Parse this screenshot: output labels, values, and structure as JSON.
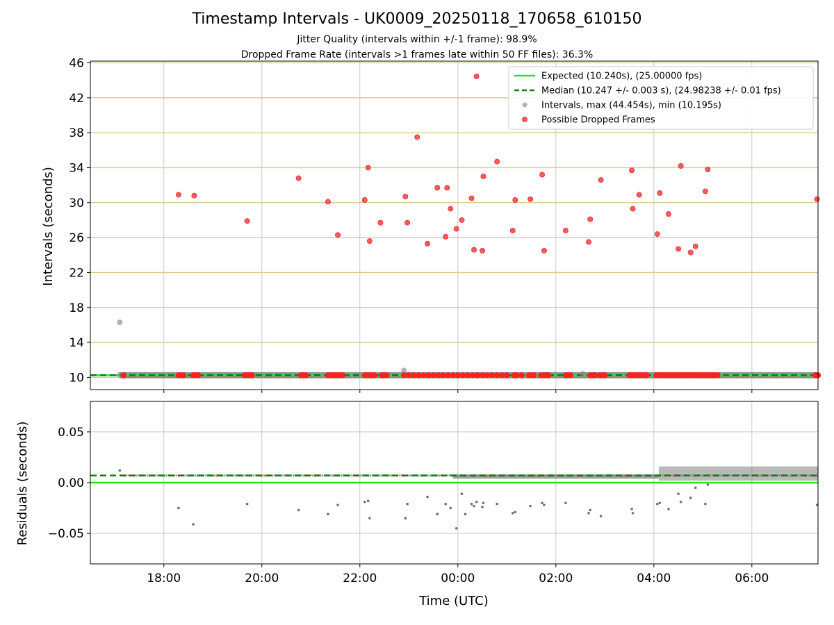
{
  "title": "Timestamp Intervals - UK0009_20250118_170658_610150",
  "subtitle_jitter": "Jitter Quality (intervals within +/-1 frame): 98.9%",
  "subtitle_dropped": "Dropped Frame Rate (intervals >1 frames late within 50 FF files): 36.3%",
  "colors": {
    "expected": "#22e622",
    "median": "#0a7d0a",
    "intervals": "#808080",
    "dropped": "#ff2020",
    "hgrid_top": "#d9c58c",
    "grid": "#c8c8c8"
  },
  "chart_data": [
    {
      "type": "scatter",
      "ylabel": "Intervals (seconds)",
      "ylim": [
        8.6,
        46.2
      ],
      "yticks": [
        10,
        14,
        18,
        22,
        26,
        30,
        34,
        38,
        42,
        46
      ],
      "xlim_hours": [
        16.5,
        31.35
      ],
      "grid": true,
      "legend_position": "top-right",
      "legend": [
        "Expected (10.240s), (25.00000 fps)",
        "Median (10.247 +/- 0.003 s), (24.98238 +/- 0.01 fps)",
        "Intervals, max (44.454s), min (10.195s)",
        "Possible Dropped Frames"
      ],
      "expected_value": 10.24,
      "median_value": 10.247,
      "intervals_baseline": 10.24,
      "intervals_outliers": [
        [
          17.1,
          16.3
        ],
        [
          22.9,
          10.8
        ],
        [
          26.55,
          10.4
        ],
        [
          17.1,
          10.3
        ]
      ],
      "dropped_frames": [
        [
          18.3,
          30.9
        ],
        [
          18.62,
          30.8
        ],
        [
          19.7,
          27.9
        ],
        [
          20.75,
          32.8
        ],
        [
          21.35,
          30.1
        ],
        [
          21.55,
          26.3
        ],
        [
          22.1,
          30.3
        ],
        [
          22.17,
          34.0
        ],
        [
          22.2,
          25.6
        ],
        [
          22.42,
          27.7
        ],
        [
          22.93,
          30.7
        ],
        [
          22.97,
          27.7
        ],
        [
          23.17,
          37.5
        ],
        [
          23.38,
          25.3
        ],
        [
          23.58,
          31.7
        ],
        [
          23.75,
          26.1
        ],
        [
          23.78,
          31.7
        ],
        [
          23.85,
          29.3
        ],
        [
          23.97,
          27.0
        ],
        [
          24.08,
          28.0
        ],
        [
          24.28,
          30.5
        ],
        [
          24.33,
          24.6
        ],
        [
          24.38,
          44.454
        ],
        [
          24.5,
          24.5
        ],
        [
          24.52,
          33.0
        ],
        [
          24.8,
          34.7
        ],
        [
          25.12,
          26.8
        ],
        [
          25.17,
          30.3
        ],
        [
          25.48,
          30.4
        ],
        [
          25.72,
          33.2
        ],
        [
          25.76,
          24.5
        ],
        [
          26.2,
          26.8
        ],
        [
          26.67,
          25.5
        ],
        [
          26.7,
          28.1
        ],
        [
          26.92,
          32.6
        ],
        [
          27.55,
          33.7
        ],
        [
          27.57,
          29.3
        ],
        [
          27.7,
          30.9
        ],
        [
          28.07,
          26.4
        ],
        [
          28.12,
          31.1
        ],
        [
          28.3,
          28.7
        ],
        [
          28.5,
          24.7
        ],
        [
          28.55,
          34.2
        ],
        [
          28.75,
          24.3
        ],
        [
          28.85,
          25.0
        ],
        [
          29.05,
          31.3
        ],
        [
          29.1,
          33.8
        ],
        [
          31.33,
          30.4
        ]
      ],
      "dropped_baseline_x": [
        17.18,
        18.3,
        18.35,
        18.4,
        18.6,
        18.65,
        18.7,
        19.65,
        19.7,
        19.75,
        19.8,
        20.8,
        20.85,
        20.9,
        21.35,
        21.4,
        21.45,
        21.5,
        21.55,
        21.6,
        21.65,
        22.1,
        22.15,
        22.2,
        22.25,
        22.3,
        22.45,
        22.5,
        22.55,
        22.9,
        23.0,
        23.1,
        23.2,
        23.3,
        23.4,
        23.5,
        23.6,
        23.7,
        23.8,
        23.9,
        24.0,
        24.1,
        24.2,
        24.3,
        24.4,
        24.5,
        24.6,
        24.7,
        24.8,
        24.9,
        25.0,
        25.15,
        25.2,
        25.3,
        25.45,
        25.5,
        25.55,
        25.7,
        25.75,
        25.8,
        25.85,
        26.2,
        26.25,
        26.3,
        26.7,
        26.75,
        26.8,
        26.9,
        26.95,
        27.0,
        27.5,
        27.55,
        27.6,
        27.65,
        27.7,
        27.75,
        27.8,
        27.85,
        28.05,
        28.1,
        28.15,
        28.2,
        28.25,
        28.3,
        28.35,
        28.4,
        28.45,
        28.5,
        28.55,
        28.6,
        28.65,
        28.7,
        28.75,
        28.8,
        28.85,
        28.9,
        28.95,
        29.0,
        29.05,
        29.1,
        29.15,
        29.2,
        29.25,
        29.3,
        31.3,
        31.35
      ]
    },
    {
      "type": "scatter",
      "xlabel": "Time (UTC)",
      "ylabel": "Residuals (seconds)",
      "ylim": [
        -0.08,
        0.08
      ],
      "yticks": [
        0.05,
        0.0,
        -0.05
      ],
      "ytick_labels": [
        "0.05",
        "0.00",
        "−0.05"
      ],
      "xlim_hours": [
        16.5,
        31.35
      ],
      "xticks_hours": [
        18,
        20,
        22,
        24,
        26,
        28,
        30
      ],
      "xtick_labels": [
        "18:00",
        "20:00",
        "22:00",
        "00:00",
        "02:00",
        "04:00",
        "06:00"
      ],
      "grid": true,
      "expected_residual": 0.0,
      "median_residual": 0.007,
      "baseline_residual": 0.007,
      "dense_band_start_hours": 28.1,
      "dense_band_range": [
        0.002,
        0.016
      ],
      "residual_outliers": [
        [
          17.1,
          0.012
        ],
        [
          18.3,
          -0.025
        ],
        [
          18.6,
          -0.041
        ],
        [
          19.7,
          -0.021
        ],
        [
          20.75,
          -0.027
        ],
        [
          21.35,
          -0.031
        ],
        [
          21.55,
          -0.022
        ],
        [
          22.1,
          -0.019
        ],
        [
          22.17,
          -0.018
        ],
        [
          22.2,
          -0.035
        ],
        [
          22.93,
          -0.035
        ],
        [
          22.97,
          -0.021
        ],
        [
          23.38,
          -0.014
        ],
        [
          23.58,
          -0.031
        ],
        [
          23.75,
          -0.021
        ],
        [
          23.85,
          -0.025
        ],
        [
          23.97,
          -0.045
        ],
        [
          24.08,
          -0.011
        ],
        [
          24.15,
          -0.031
        ],
        [
          24.28,
          -0.021
        ],
        [
          24.33,
          -0.023
        ],
        [
          24.38,
          -0.019
        ],
        [
          24.5,
          -0.024
        ],
        [
          24.52,
          -0.02
        ],
        [
          24.8,
          -0.021
        ],
        [
          25.12,
          -0.03
        ],
        [
          25.17,
          -0.029
        ],
        [
          25.48,
          -0.023
        ],
        [
          25.72,
          -0.02
        ],
        [
          25.76,
          -0.022
        ],
        [
          26.2,
          -0.02
        ],
        [
          26.67,
          -0.03
        ],
        [
          26.7,
          -0.027
        ],
        [
          26.92,
          -0.033
        ],
        [
          27.55,
          -0.026
        ],
        [
          27.57,
          -0.03
        ],
        [
          28.07,
          -0.021
        ],
        [
          28.12,
          -0.02
        ],
        [
          28.3,
          -0.026
        ],
        [
          28.5,
          -0.011
        ],
        [
          28.55,
          -0.019
        ],
        [
          28.75,
          -0.015
        ],
        [
          28.85,
          -0.005
        ],
        [
          29.05,
          -0.021
        ],
        [
          29.1,
          -0.002
        ],
        [
          31.33,
          -0.022
        ]
      ]
    }
  ]
}
